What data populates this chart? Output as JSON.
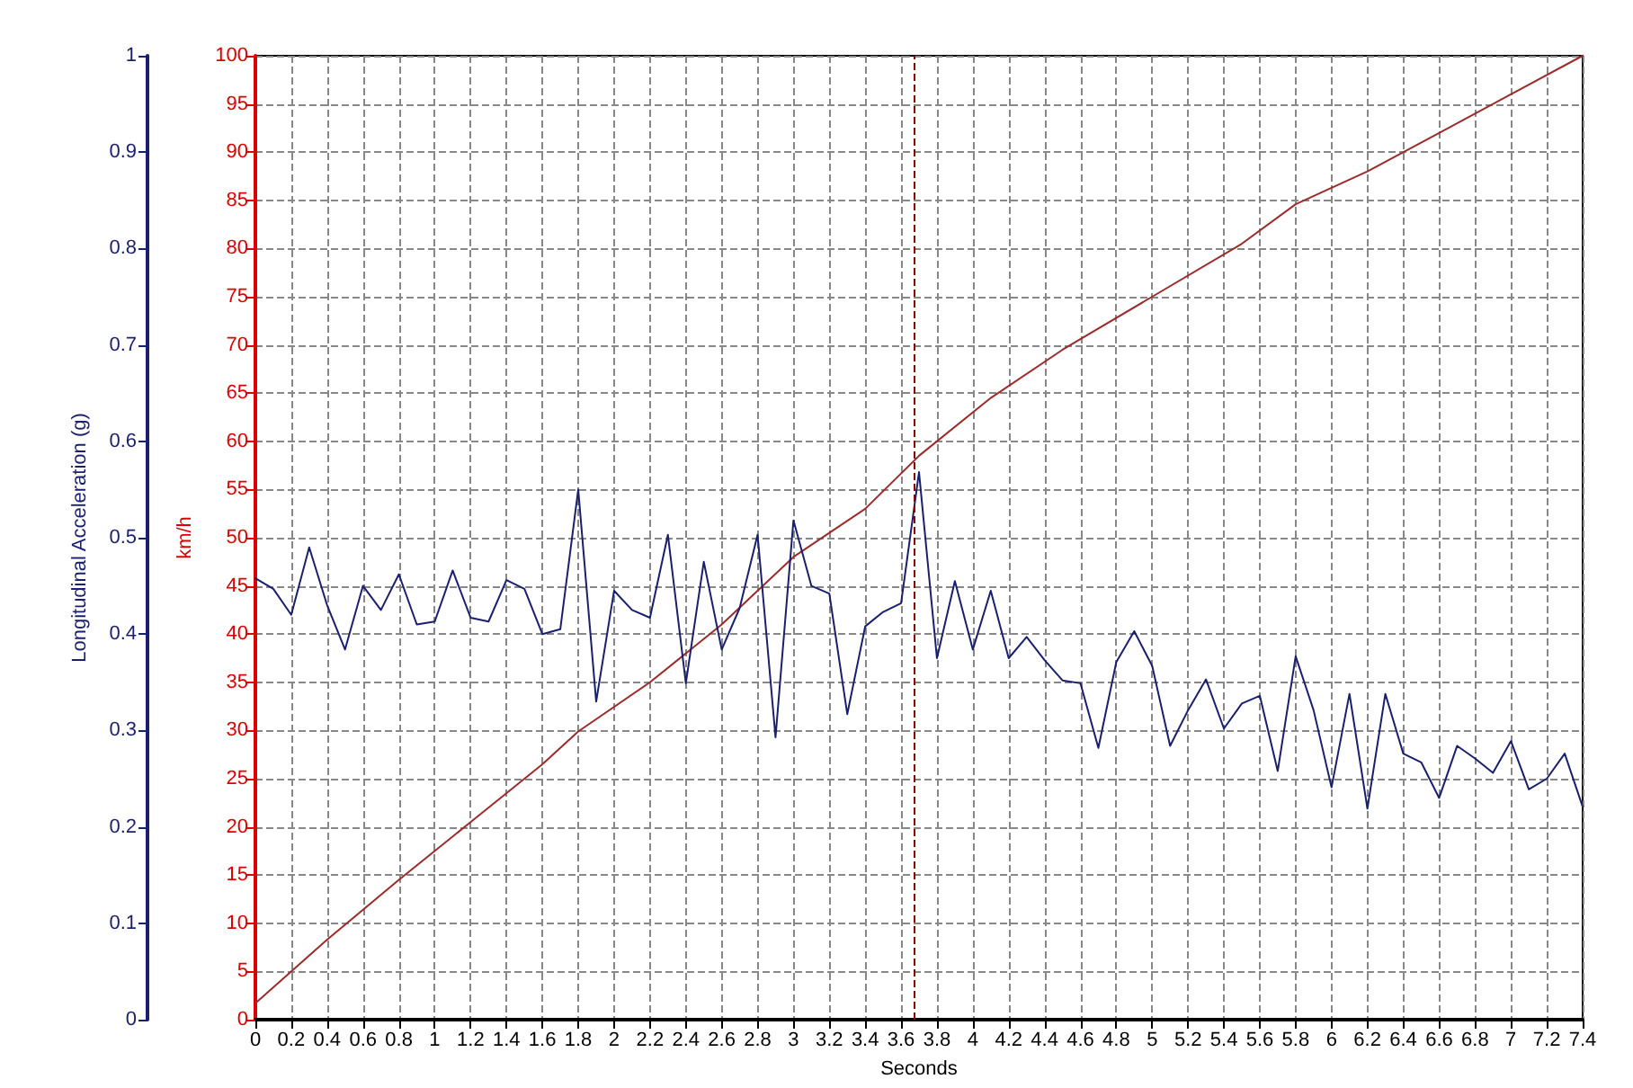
{
  "chart_data": {
    "type": "line",
    "xlabel": "Seconds",
    "ylabel": "km/h",
    "y2label": "Longitudinal Acceleration (g)",
    "xlim": [
      0,
      7.4
    ],
    "xticks": [
      0,
      0.2,
      0.4,
      0.6,
      0.8,
      1,
      1.2,
      1.4,
      1.6,
      1.8,
      2,
      2.2,
      2.4,
      2.6,
      2.8,
      3,
      3.2,
      3.4,
      3.6,
      3.8,
      4,
      4.2,
      4.4,
      4.6,
      4.8,
      5,
      5.2,
      5.4,
      5.6,
      5.8,
      6,
      6.2,
      6.4,
      6.6,
      6.8,
      7,
      7.2,
      7.4
    ],
    "ylim": [
      0,
      100
    ],
    "yticks": [
      0,
      5,
      10,
      15,
      20,
      25,
      30,
      35,
      40,
      45,
      50,
      55,
      60,
      65,
      70,
      75,
      80,
      85,
      90,
      95,
      100
    ],
    "y2lim": [
      0,
      1
    ],
    "y2ticks": [
      0,
      0.1,
      0.2,
      0.3,
      0.4,
      0.5,
      0.6,
      0.7,
      0.8,
      0.9,
      1
    ],
    "grid": true,
    "marker": "none",
    "line_style": "solid",
    "ref_lines": [
      {
        "axis": "x",
        "value": 3.67,
        "color": "#8b0000",
        "line_style": "dashed"
      }
    ],
    "series": [
      {
        "color": "#9c2b2b",
        "x": [
          0,
          0.4,
          0.8,
          1.2,
          1.6,
          1.8,
          2.2,
          2.6,
          2.8,
          3.0,
          3.4,
          3.7,
          4.1,
          4.5,
          5.0,
          5.5,
          5.8,
          6.2,
          6.6,
          7.0,
          7.4
        ],
        "values": [
          1.7,
          8.3,
          14.5,
          20.5,
          26.5,
          29.9,
          35,
          41,
          44.5,
          48,
          53,
          58.5,
          64.5,
          69.5,
          75,
          80.5,
          84.6,
          88,
          92,
          96,
          100
        ]
      },
      {
        "color": "#1a1f6e",
        "axis": "y2",
        "x": [
          0,
          0.1,
          0.2,
          0.3,
          0.4,
          0.5,
          0.6,
          0.7,
          0.8,
          0.9,
          1,
          1.1,
          1.2,
          1.3,
          1.4,
          1.5,
          1.6,
          1.7,
          1.8,
          1.9,
          2,
          2.1,
          2.2,
          2.3,
          2.4,
          2.5,
          2.6,
          2.7,
          2.8,
          2.9,
          3,
          3.1,
          3.2,
          3.3,
          3.4,
          3.5,
          3.6,
          3.7,
          3.8,
          3.9,
          4,
          4.1,
          4.2,
          4.3,
          4.4,
          4.5,
          4.6,
          4.7,
          4.8,
          4.9,
          5,
          5.1,
          5.2,
          5.3,
          5.4,
          5.5,
          5.6,
          5.7,
          5.8,
          5.9,
          6,
          6.1,
          6.2,
          6.3,
          6.4,
          6.5,
          6.6,
          6.7,
          6.8,
          6.9,
          7,
          7.1,
          7.2,
          7.3,
          7.4
        ],
        "values": [
          0.458,
          0.447,
          0.42,
          0.49,
          0.43,
          0.384,
          0.45,
          0.425,
          0.462,
          0.41,
          0.413,
          0.466,
          0.417,
          0.413,
          0.456,
          0.447,
          0.4,
          0.405,
          0.55,
          0.33,
          0.445,
          0.425,
          0.417,
          0.503,
          0.349,
          0.475,
          0.384,
          0.427,
          0.503,
          0.293,
          0.518,
          0.45,
          0.442,
          0.317,
          0.408,
          0.423,
          0.432,
          0.568,
          0.375,
          0.455,
          0.384,
          0.445,
          0.375,
          0.397,
          0.373,
          0.352,
          0.349,
          0.282,
          0.371,
          0.403,
          0.367,
          0.284,
          0.321,
          0.353,
          0.302,
          0.328,
          0.336,
          0.258,
          0.377,
          0.321,
          0.241,
          0.338,
          0.219,
          0.338,
          0.276,
          0.267,
          0.23,
          0.284,
          0.271,
          0.256,
          0.289,
          0.239,
          0.25,
          0.276,
          0.221
        ]
      }
    ]
  }
}
